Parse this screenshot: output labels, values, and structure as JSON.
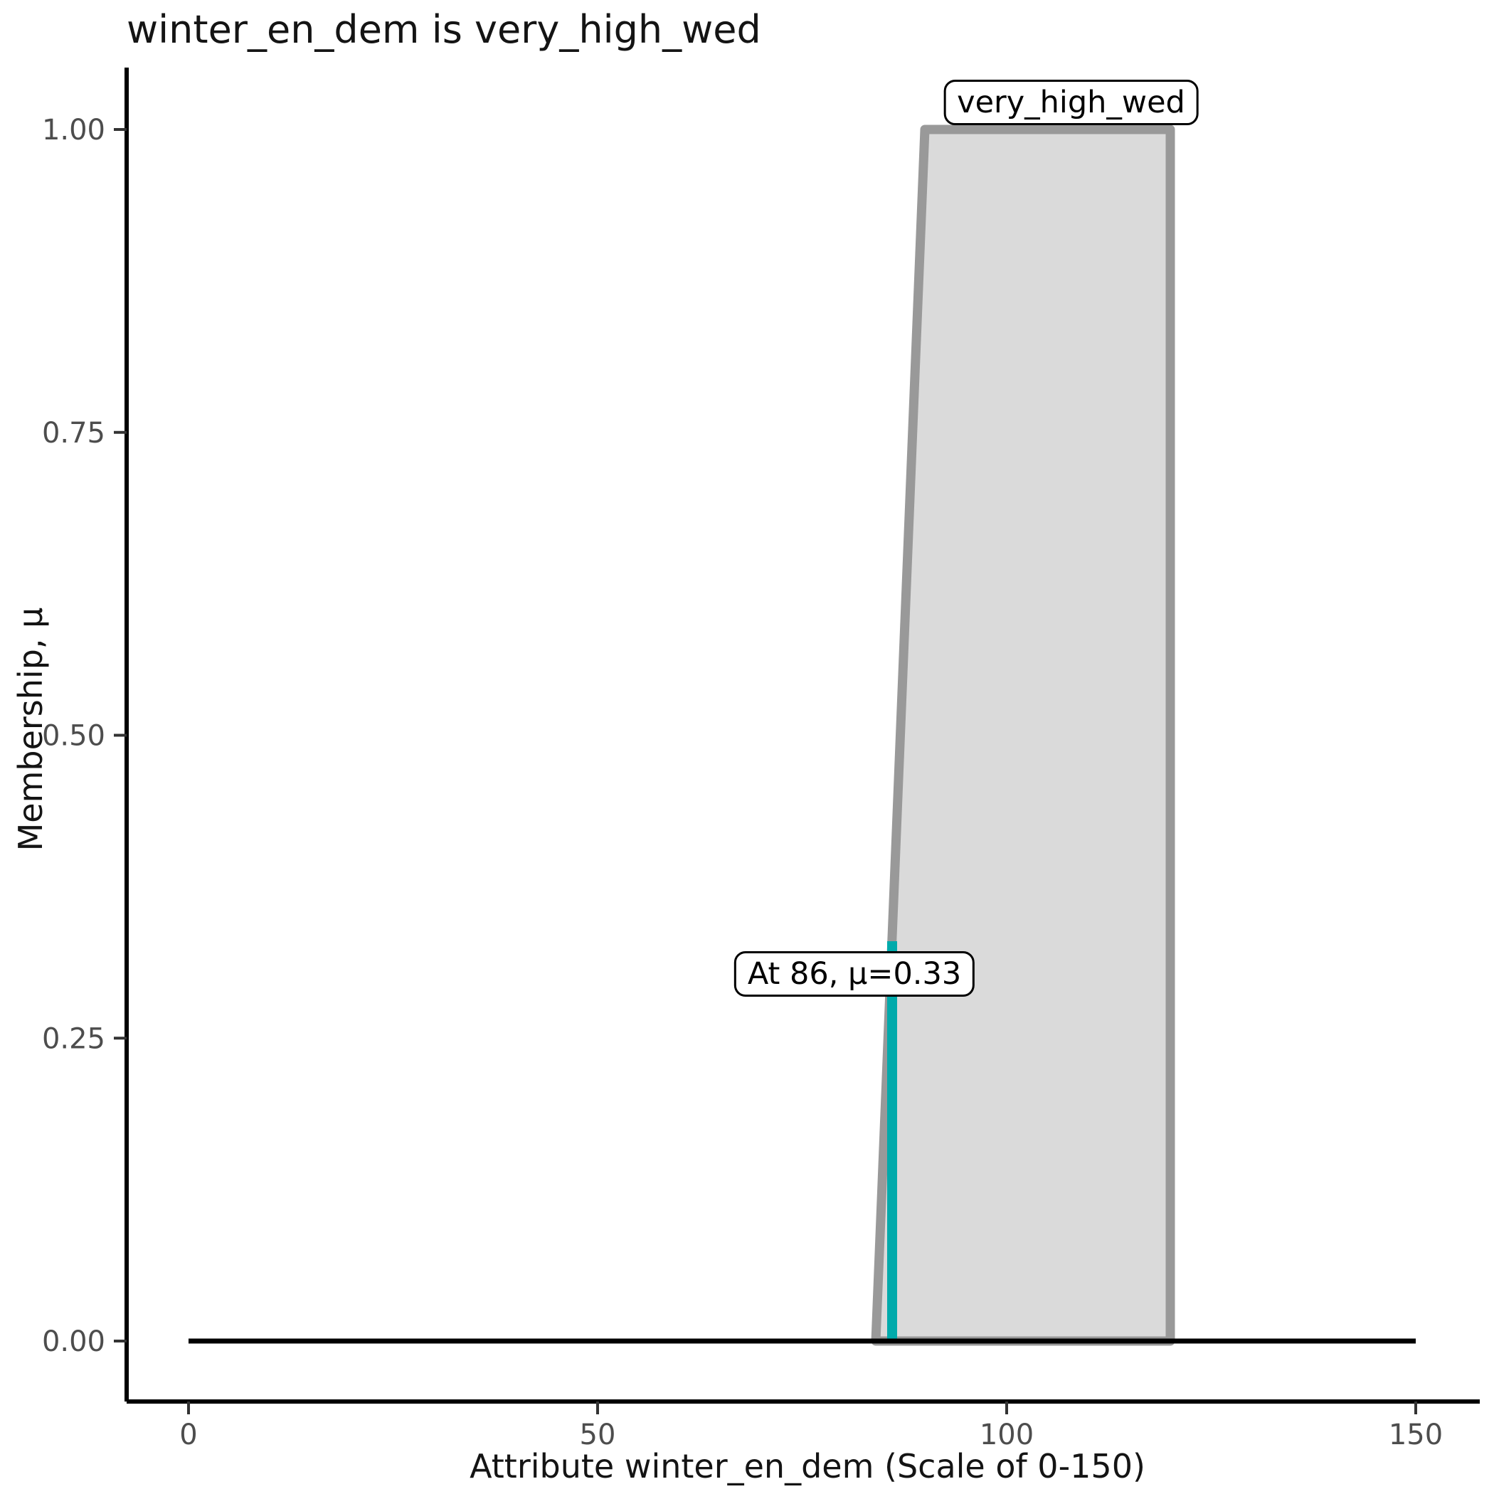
{
  "chart_data": {
    "type": "area",
    "title": "winter_en_dem is very_high_wed",
    "xlabel": "Attribute winter_en_dem (Scale of 0-150)",
    "ylabel": "Membership, μ",
    "xlim": [
      0,
      150
    ],
    "ylim": [
      0,
      1
    ],
    "grid": false,
    "legend": "none",
    "x_ticks": [
      {
        "value": 0,
        "label": "0"
      },
      {
        "value": 50,
        "label": "50"
      },
      {
        "value": 100,
        "label": "100"
      },
      {
        "value": 150,
        "label": "150"
      }
    ],
    "y_ticks": [
      {
        "value": 0.0,
        "label": "0.00"
      },
      {
        "value": 0.25,
        "label": "0.25"
      },
      {
        "value": 0.5,
        "label": "0.50"
      },
      {
        "value": 0.75,
        "label": "0.75"
      },
      {
        "value": 1.0,
        "label": "1.00"
      }
    ],
    "membership_function": {
      "name": "very_high_wed",
      "points": [
        [
          84,
          0
        ],
        [
          90,
          1
        ],
        [
          120,
          1
        ],
        [
          120,
          0
        ]
      ],
      "fill_color": "#DADADA",
      "stroke_color": "#999999"
    },
    "baseline": {
      "mu": 0,
      "x_start": 0,
      "x_end": 150,
      "color": "#000000"
    },
    "marker": {
      "x": 86,
      "mu": 0.33,
      "label": "At 86, μ=0.33",
      "color": "#00AAAB"
    },
    "set_label": "very_high_wed"
  },
  "colors": {
    "axis_line": "#000000",
    "tick_mark": "#333333",
    "tick_label": "#4D4D4D",
    "title_text": "#141414"
  }
}
